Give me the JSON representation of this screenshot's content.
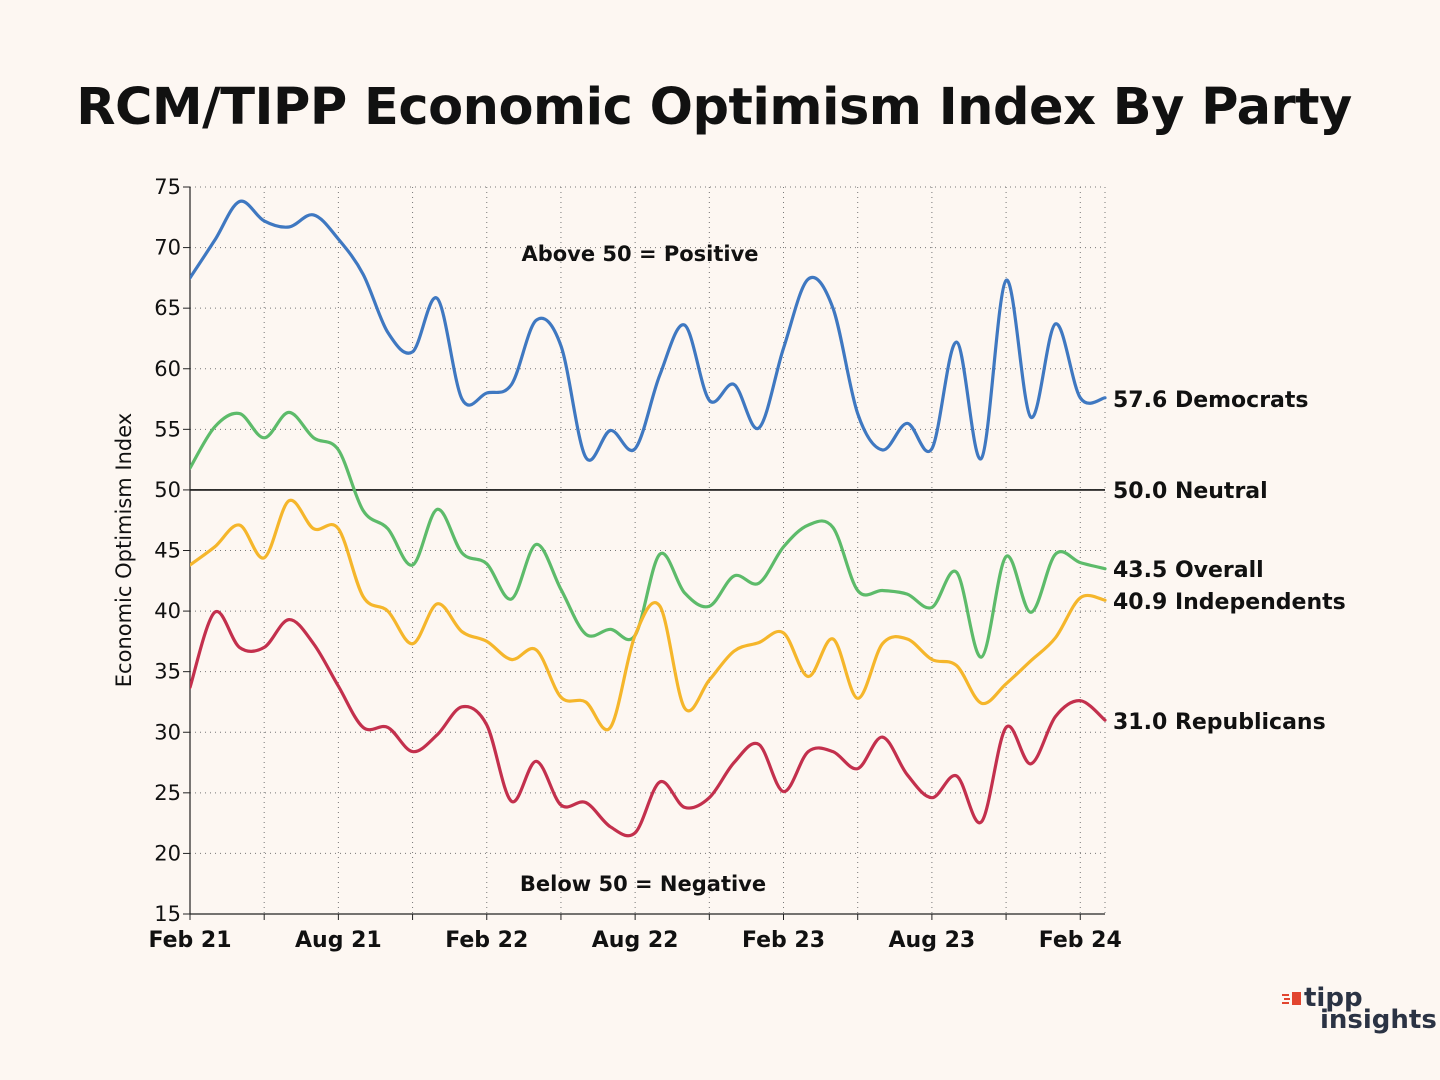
{
  "title": "RCM/TIPP Economic Optimism Index By Party",
  "chart_data": {
    "type": "line",
    "title": "RCM/TIPP Economic Optimism Index By Party",
    "xlabel": "",
    "ylabel": "Economic Optimism Index",
    "ylim": [
      15,
      75
    ],
    "yticks": [
      15,
      20,
      25,
      30,
      35,
      40,
      45,
      50,
      55,
      60,
      65,
      70,
      75
    ],
    "x_tick_labels": [
      "Feb 21",
      "Aug 21",
      "Feb 22",
      "Aug 22",
      "Feb 23",
      "Aug 23",
      "Feb 24"
    ],
    "x_months_start": "Feb 21",
    "x_range_months": [
      0,
      37
    ],
    "annotations": {
      "above": "Above 50 = Positive",
      "below": "Below 50 = Negative"
    },
    "reference_line": {
      "value": 50.0,
      "label": "50.0 Neutral"
    },
    "series": [
      {
        "name": "Democrats",
        "end_label": "57.6 Democrats",
        "color": "#3f78c1",
        "x": [
          0,
          1,
          2,
          3,
          4,
          5,
          6,
          7,
          8,
          9,
          10,
          11,
          12,
          13,
          14,
          15,
          16,
          17,
          18,
          19,
          20,
          21,
          22,
          23,
          24,
          25,
          26,
          27,
          28,
          29,
          30,
          31,
          32,
          33,
          34,
          35,
          36,
          37
        ],
        "values": [
          67.5,
          70.6,
          73.8,
          72.2,
          71.7,
          72.7,
          70.7,
          67.8,
          63.0,
          61.4,
          65.8,
          57.5,
          58.0,
          58.7,
          64.0,
          61.9,
          52.7,
          54.9,
          53.4,
          59.5,
          63.6,
          57.4,
          58.7,
          55.1,
          61.7,
          67.4,
          65.0,
          56.3,
          53.3,
          55.5,
          53.4,
          62.2,
          52.6,
          67.3,
          56.0,
          63.7,
          57.6,
          57.6
        ]
      },
      {
        "name": "Overall",
        "end_label": "43.5 Overall",
        "color": "#5dbb6a",
        "x": [
          0,
          1,
          2,
          3,
          4,
          5,
          6,
          7,
          8,
          9,
          10,
          11,
          12,
          13,
          14,
          15,
          16,
          17,
          18,
          19,
          20,
          21,
          22,
          23,
          24,
          25,
          26,
          27,
          28,
          29,
          30,
          31,
          32,
          33,
          34,
          35,
          36,
          37
        ],
        "values": [
          51.8,
          55.2,
          56.3,
          54.3,
          56.4,
          54.3,
          53.3,
          48.3,
          46.8,
          43.8,
          48.4,
          44.8,
          43.9,
          41.0,
          45.5,
          41.8,
          38.1,
          38.5,
          38.0,
          44.7,
          41.5,
          40.4,
          42.9,
          42.3,
          45.3,
          47.1,
          46.9,
          41.7,
          41.7,
          41.4,
          40.3,
          43.2,
          36.2,
          44.5,
          39.9,
          44.7,
          44.0,
          43.5
        ]
      },
      {
        "name": "Independents",
        "end_label": "40.9 Independents",
        "color": "#f5b62b",
        "x": [
          0,
          1,
          2,
          3,
          4,
          5,
          6,
          7,
          8,
          9,
          10,
          11,
          12,
          13,
          14,
          15,
          16,
          17,
          18,
          19,
          20,
          21,
          22,
          23,
          24,
          25,
          26,
          27,
          28,
          29,
          30,
          31,
          32,
          33,
          34,
          35,
          36,
          37
        ],
        "values": [
          43.8,
          45.3,
          47.1,
          44.4,
          49.1,
          46.8,
          46.8,
          41.2,
          40.0,
          37.3,
          40.6,
          38.3,
          37.5,
          36.0,
          36.8,
          32.9,
          32.5,
          30.4,
          38.0,
          40.4,
          32.0,
          34.3,
          36.7,
          37.4,
          38.2,
          34.6,
          37.7,
          32.8,
          37.3,
          37.7,
          36.0,
          35.5,
          32.4,
          34.0,
          35.9,
          37.8,
          41.1,
          40.9
        ]
      },
      {
        "name": "Republicans",
        "end_label": "31.0 Republicans",
        "color": "#c3304d",
        "x": [
          0,
          1,
          2,
          3,
          4,
          5,
          6,
          7,
          8,
          9,
          10,
          11,
          12,
          13,
          14,
          15,
          16,
          17,
          18,
          19,
          20,
          21,
          22,
          23,
          24,
          25,
          26,
          27,
          28,
          29,
          30,
          31,
          32,
          33,
          34,
          35,
          36,
          37
        ],
        "values": [
          33.7,
          39.9,
          37.0,
          37.0,
          39.3,
          37.3,
          33.8,
          30.4,
          30.4,
          28.4,
          29.8,
          32.1,
          30.6,
          24.3,
          27.6,
          24.0,
          24.2,
          22.2,
          21.7,
          25.9,
          23.8,
          24.6,
          27.5,
          29.0,
          25.1,
          28.4,
          28.4,
          27.0,
          29.6,
          26.5,
          24.6,
          26.4,
          22.6,
          30.4,
          27.4,
          31.3,
          32.6,
          31.0
        ]
      }
    ]
  },
  "logo": {
    "top": "tipp",
    "bottom": "insights",
    "mark_color": "#e2452f"
  }
}
